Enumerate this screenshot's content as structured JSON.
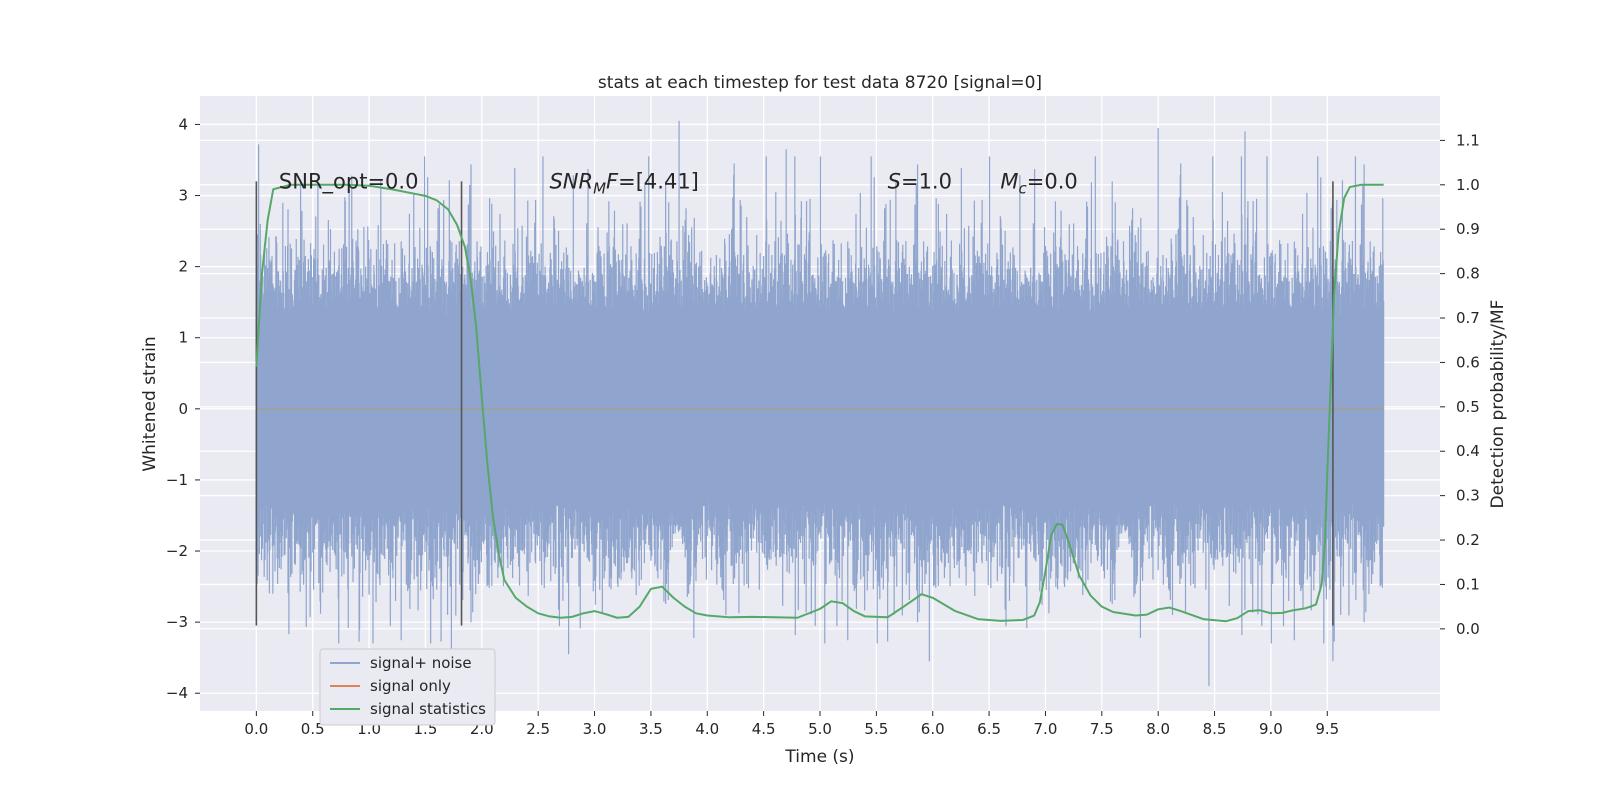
{
  "chart_data": {
    "type": "line",
    "title": "stats at each timestep for test data 8720 [signal=0]",
    "xlabel": "Time (s)",
    "ylabel": "Whitened strain",
    "y2label": "Detection probability/MF",
    "xlim": [
      -0.5,
      10.5
    ],
    "ylim": [
      -4.25,
      4.4
    ],
    "y2lim": [
      -0.185,
      1.2
    ],
    "xticks": [
      "0.0",
      "0.5",
      "1.0",
      "1.5",
      "2.0",
      "2.5",
      "3.0",
      "3.5",
      "4.0",
      "4.5",
      "5.0",
      "5.5",
      "6.0",
      "6.5",
      "7.0",
      "7.5",
      "8.0",
      "8.5",
      "9.0",
      "9.5"
    ],
    "yticks": [
      "−4",
      "−3",
      "−2",
      "−1",
      "0",
      "1",
      "2",
      "3",
      "4"
    ],
    "y2ticks": [
      "0.0",
      "0.1",
      "0.2",
      "0.3",
      "0.4",
      "0.5",
      "0.6",
      "0.7",
      "0.8",
      "0.9",
      "1.0",
      "1.1"
    ],
    "grid": true,
    "legend_placement": "lower-left",
    "colors": {
      "plot_bg": "#eaeaf2",
      "grid": "#ffffff",
      "noise": "#8fa5cd",
      "signal": "#dd8452",
      "stats": "#55a868",
      "vline": "#555555"
    },
    "series": [
      {
        "name": "signal+ noise",
        "x_range": [
          0.0,
          10.0
        ],
        "envelope": {
          "core_amplitude": 1.3,
          "max_peak": 4.05,
          "min_peak": -3.9
        },
        "notable_peaks": [
          {
            "x": 0.02,
            "y": 3.72
          },
          {
            "x": 3.75,
            "y": 4.05
          },
          {
            "x": 8.0,
            "y": 3.95
          },
          {
            "x": 8.77,
            "y": 3.9
          },
          {
            "x": 4.7,
            "y": 3.65
          },
          {
            "x": 9.75,
            "y": 3.55
          },
          {
            "x": 1.73,
            "y": -3.4
          },
          {
            "x": 8.45,
            "y": -3.9
          },
          {
            "x": 5.97,
            "y": -3.55
          },
          {
            "x": 9.55,
            "y": -3.55
          },
          {
            "x": 2.77,
            "y": -3.45
          }
        ]
      },
      {
        "name": "signal only",
        "x": [
          0.0,
          10.0
        ],
        "y": [
          0.0,
          0.0
        ]
      },
      {
        "name": "signal statistics",
        "x": [
          0.0,
          0.05,
          0.1,
          0.15,
          0.3,
          0.5,
          0.8,
          1.0,
          1.2,
          1.4,
          1.5,
          1.6,
          1.7,
          1.78,
          1.85,
          1.9,
          1.95,
          2.0,
          2.05,
          2.1,
          2.15,
          2.2,
          2.3,
          2.4,
          2.5,
          2.6,
          2.7,
          2.8,
          2.9,
          3.0,
          3.1,
          3.2,
          3.3,
          3.4,
          3.5,
          3.6,
          3.7,
          3.8,
          3.9,
          4.0,
          4.2,
          4.4,
          4.6,
          4.8,
          5.0,
          5.1,
          5.2,
          5.3,
          5.4,
          5.6,
          5.8,
          5.9,
          6.0,
          6.2,
          6.4,
          6.6,
          6.8,
          6.9,
          6.95,
          7.0,
          7.05,
          7.1,
          7.15,
          7.2,
          7.3,
          7.4,
          7.5,
          7.6,
          7.8,
          7.9,
          8.0,
          8.1,
          8.2,
          8.4,
          8.6,
          8.7,
          8.8,
          8.9,
          9.0,
          9.1,
          9.2,
          9.3,
          9.35,
          9.4,
          9.45,
          9.48,
          9.5,
          9.53,
          9.56,
          9.6,
          9.65,
          9.7,
          9.8,
          9.9,
          10.0
        ],
        "y": [
          0.59,
          0.8,
          0.92,
          0.99,
          1.0,
          1.0,
          1.0,
          0.998,
          0.99,
          0.98,
          0.975,
          0.965,
          0.945,
          0.91,
          0.86,
          0.79,
          0.68,
          0.52,
          0.37,
          0.25,
          0.17,
          0.11,
          0.07,
          0.05,
          0.035,
          0.028,
          0.025,
          0.027,
          0.035,
          0.04,
          0.033,
          0.025,
          0.027,
          0.05,
          0.09,
          0.095,
          0.07,
          0.05,
          0.035,
          0.03,
          0.026,
          0.027,
          0.026,
          0.025,
          0.045,
          0.062,
          0.058,
          0.04,
          0.028,
          0.026,
          0.06,
          0.078,
          0.07,
          0.04,
          0.022,
          0.018,
          0.02,
          0.03,
          0.06,
          0.13,
          0.21,
          0.236,
          0.235,
          0.2,
          0.12,
          0.075,
          0.05,
          0.038,
          0.03,
          0.032,
          0.044,
          0.048,
          0.04,
          0.022,
          0.017,
          0.024,
          0.04,
          0.042,
          0.035,
          0.036,
          0.042,
          0.046,
          0.05,
          0.055,
          0.1,
          0.2,
          0.35,
          0.55,
          0.75,
          0.89,
          0.97,
          0.995,
          1.0,
          1.0,
          1.0
        ]
      }
    ],
    "vlines": [
      {
        "x": 0.0,
        "y_range": [
          -3.05,
          3.2
        ]
      },
      {
        "x": 1.82,
        "y_range": [
          -3.05,
          3.2
        ]
      },
      {
        "x": 9.55,
        "y_range": [
          -3.05,
          3.2
        ]
      }
    ],
    "annotations": [
      {
        "text": "SNR_opt=0.0",
        "x": 0.2,
        "y": 3.2,
        "italic": false
      },
      {
        "text": "SNR",
        "sub": "M",
        "rest": "F=[4.41]",
        "x": 2.6,
        "y": 3.2,
        "italic": true
      },
      {
        "text": "S",
        "sub": "",
        "rest": "=1.0",
        "x": 5.6,
        "y": 3.2,
        "italic": true
      },
      {
        "text": "M",
        "sub": "c",
        "rest": "=0.0",
        "x": 6.6,
        "y": 3.2,
        "italic": true
      }
    ],
    "legend": [
      "signal+ noise",
      "signal only",
      "signal statistics"
    ]
  }
}
